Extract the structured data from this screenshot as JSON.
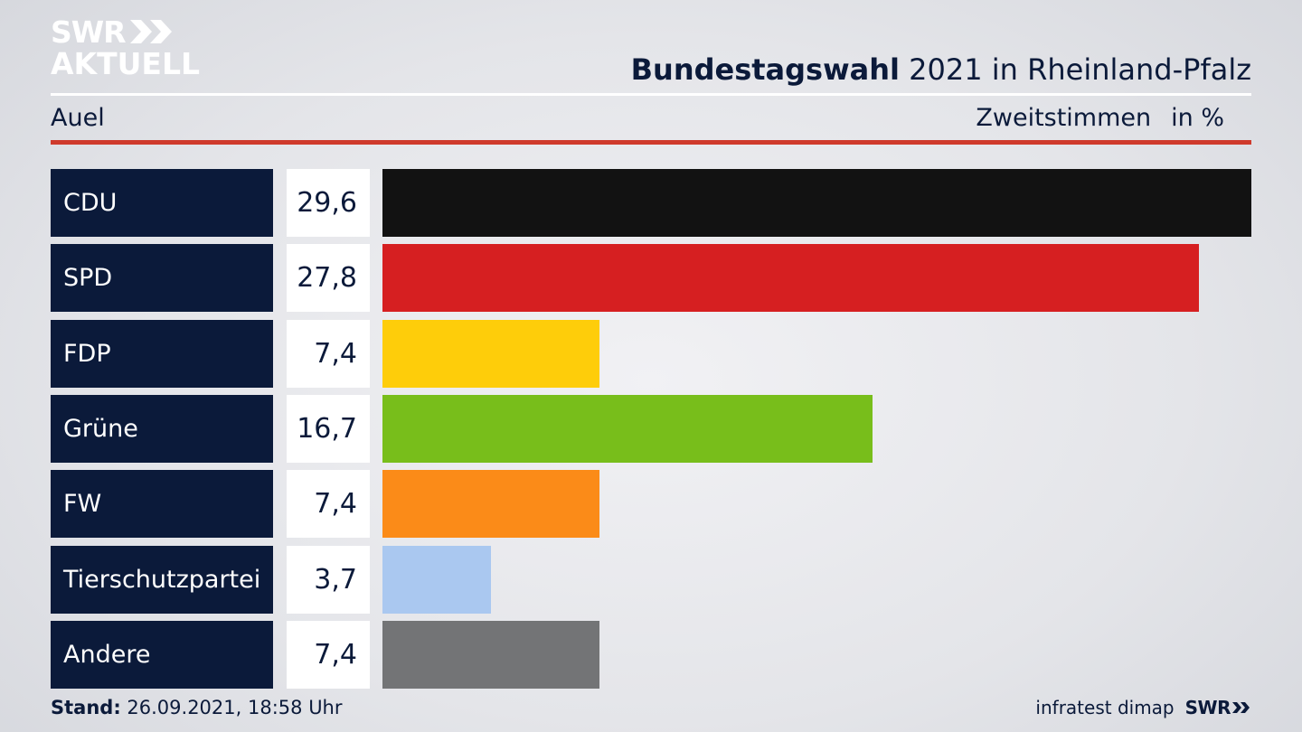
{
  "logo": {
    "line1": "SWR",
    "line2": "AKTUELL"
  },
  "header": {
    "title_bold": "Bundestagswahl",
    "title_rest": "2021 in Rheinland-Pfalz",
    "region": "Auel",
    "metric": "Zweitstimmen",
    "unit": "in %"
  },
  "chart_data": {
    "type": "bar",
    "orientation": "horizontal",
    "title": "Bundestagswahl 2021 in Rheinland-Pfalz",
    "subtitle": "Auel",
    "xlabel": "Zweitstimmen in %",
    "categories": [
      "CDU",
      "SPD",
      "FDP",
      "Grüne",
      "FW",
      "Tierschutzpartei",
      "Andere"
    ],
    "values": [
      29.6,
      27.8,
      7.4,
      16.7,
      7.4,
      3.7,
      7.4
    ],
    "value_labels": [
      "29,6",
      "27,8",
      "7,4",
      "16,7",
      "7,4",
      "3,7",
      "7,4"
    ],
    "colors": [
      "#121212",
      "#d61f21",
      "#fecd0a",
      "#78be1b",
      "#fb8b18",
      "#aac8f0",
      "#737476"
    ],
    "xlim": [
      0,
      29.6
    ]
  },
  "footer": {
    "stand_label": "Stand:",
    "stand_value": "26.09.2021, 18:58 Uhr",
    "source": "infratest dimap",
    "brand": "SWR"
  }
}
